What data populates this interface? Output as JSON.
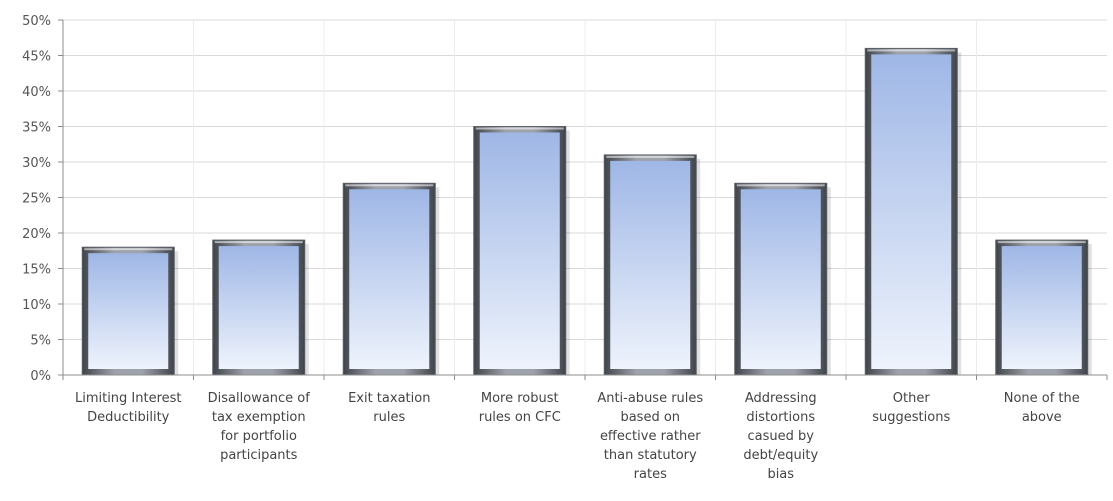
{
  "chart_data": {
    "type": "bar",
    "categories": [
      [
        "Limiting Interest",
        "Deductibility"
      ],
      [
        "Disallowance of",
        "tax exemption",
        "for portfolio",
        "participants"
      ],
      [
        "Exit taxation",
        "rules"
      ],
      [
        "More robust",
        "rules on CFC"
      ],
      [
        "Anti-abuse rules",
        "based on",
        "effective rather",
        "than statutory",
        "rates"
      ],
      [
        "Addressing",
        "distortions",
        "casued by",
        "debt/equity",
        "bias"
      ],
      [
        "Other",
        "suggestions"
      ],
      [
        "None of the",
        "above"
      ]
    ],
    "values": [
      18,
      19,
      27,
      35,
      31,
      27,
      46,
      19
    ],
    "ylim": [
      0,
      50
    ],
    "yticks": [
      "0%",
      "5%",
      "10%",
      "15%",
      "20%",
      "25%",
      "30%",
      "35%",
      "40%",
      "45%",
      "50%"
    ],
    "title": "",
    "xlabel": "",
    "ylabel": "",
    "grid": true,
    "legend": "none",
    "colors": {
      "bar_top": "#9fb7e6",
      "bar_bottom": "#eef3fc",
      "bar_frame": "#5b5f66",
      "grid": "#d9d9d9",
      "axis": "#8c8c8c"
    }
  }
}
